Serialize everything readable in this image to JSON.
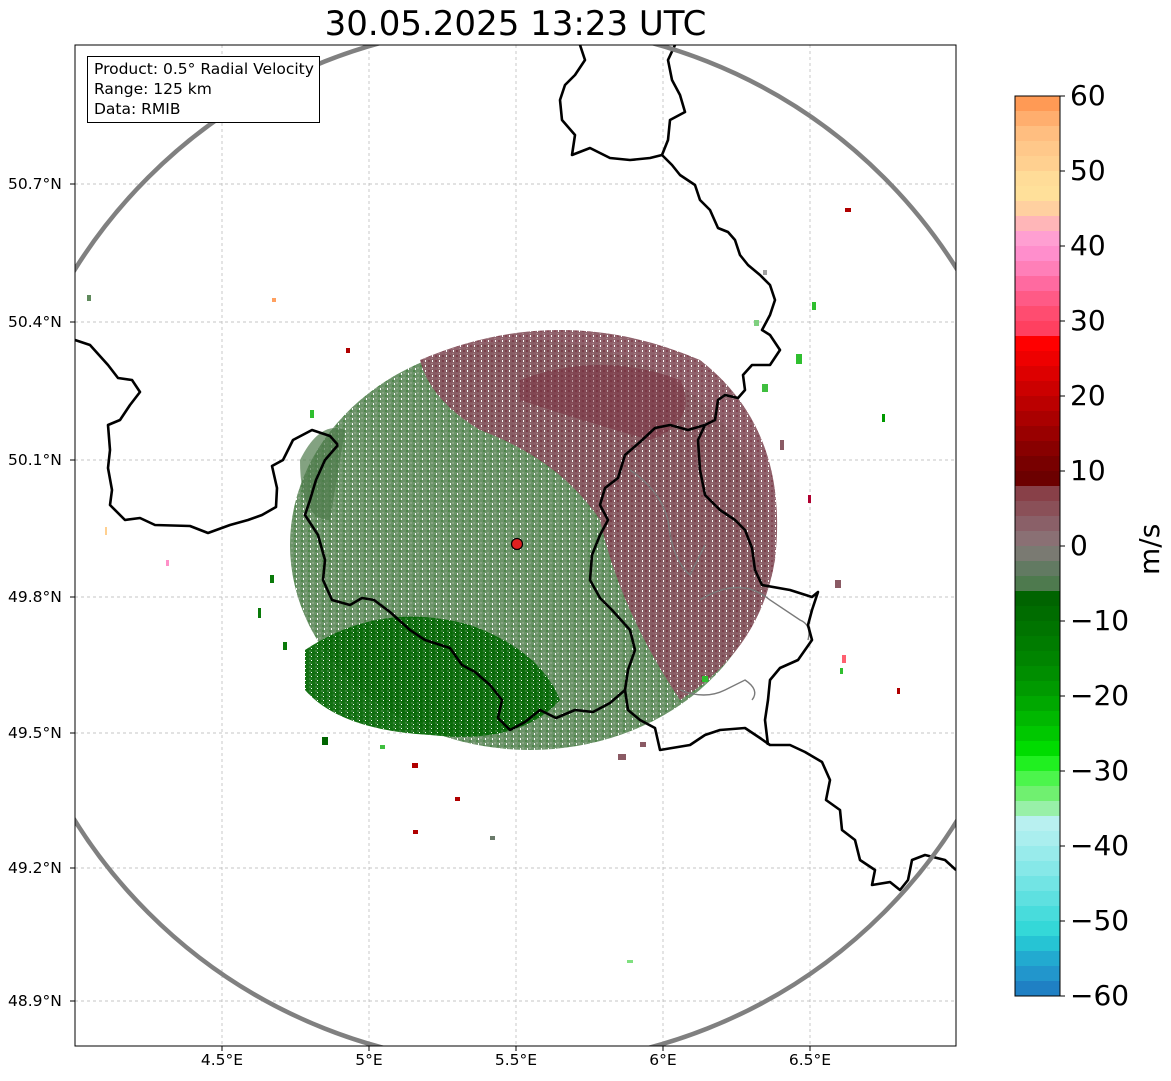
{
  "title": "30.05.2025 13:23 UTC",
  "info": {
    "product": "Product: 0.5° Radial Velocity",
    "range": "Range: 125 km",
    "data": "Data: RMIB"
  },
  "map": {
    "lat_ticks": [
      "50.7°N",
      "50.4°N",
      "50.1°N",
      "49.8°N",
      "49.5°N",
      "49.2°N",
      "48.9°N"
    ],
    "lon_ticks": [
      "4.5°E",
      "5°E",
      "5.5°E",
      "6°E",
      "6.5°E"
    ],
    "radar_site": {
      "lon": 5.505,
      "lat": 49.914
    },
    "range_ring_color": "#808080",
    "border_color": "#000000"
  },
  "colorbar": {
    "label": "m/s",
    "ticks": [
      "60",
      "50",
      "40",
      "30",
      "20",
      "10",
      "0",
      "−10",
      "−20",
      "−30",
      "−40",
      "−50",
      "−60"
    ],
    "min": -60,
    "max": 60
  }
}
